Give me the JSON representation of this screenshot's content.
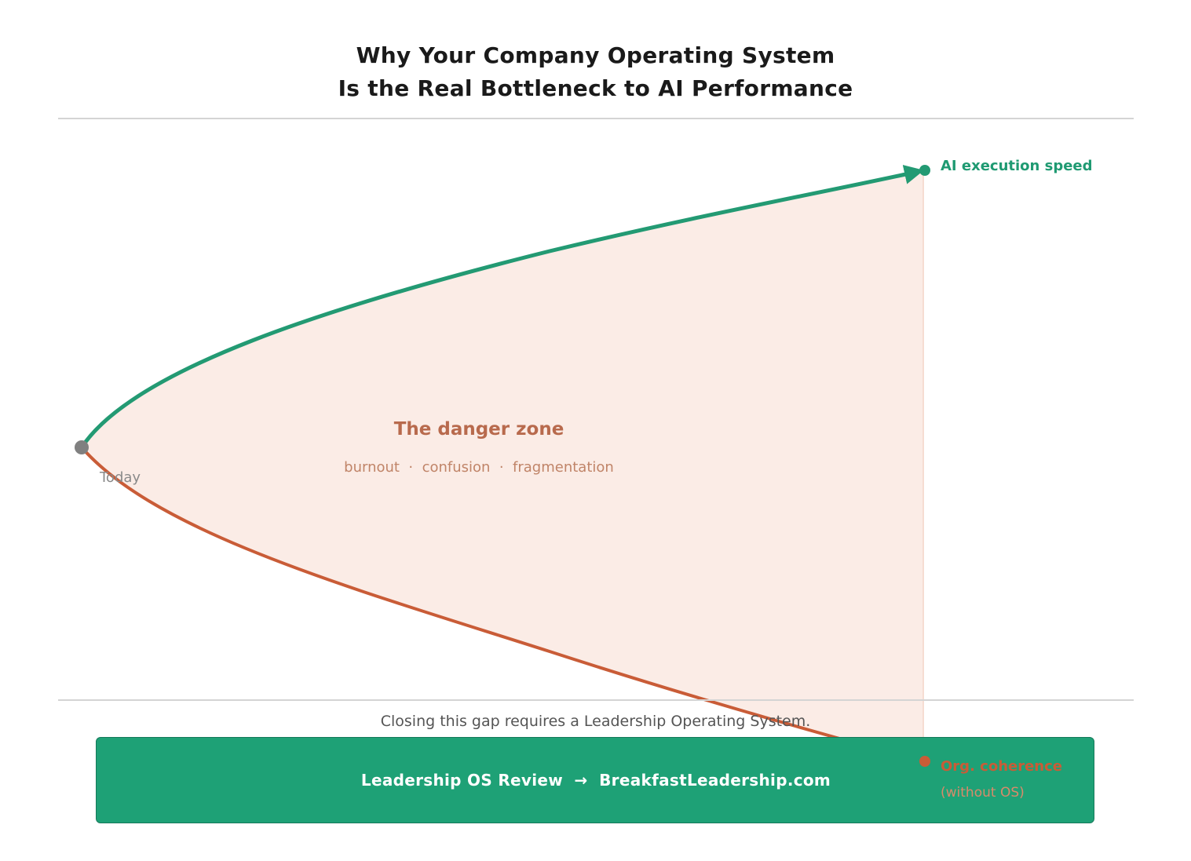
{
  "header": {
    "title_line1": "Why Your Company Operating System",
    "title_line2": "Is the Real Bottleneck to AI Performance"
  },
  "diagram": {
    "start_label": "Today",
    "zone_title": "The danger zone",
    "zone_subtitle": "burnout  ·  confusion  ·  fragmentation",
    "upper_curve_label": "AI execution speed",
    "lower_curve_label": "Org. coherence",
    "lower_curve_sublabel": "(without OS)",
    "colors": {
      "upper_curve": "#239a73",
      "lower_curve": "#c95c37",
      "zone_fill": "#fbece6",
      "start_point": "#808080"
    }
  },
  "footer": {
    "note": "Closing this gap requires a Leadership Operating System.",
    "cta_label": "Leadership OS Review  →  BreakfastLeadership.com"
  }
}
